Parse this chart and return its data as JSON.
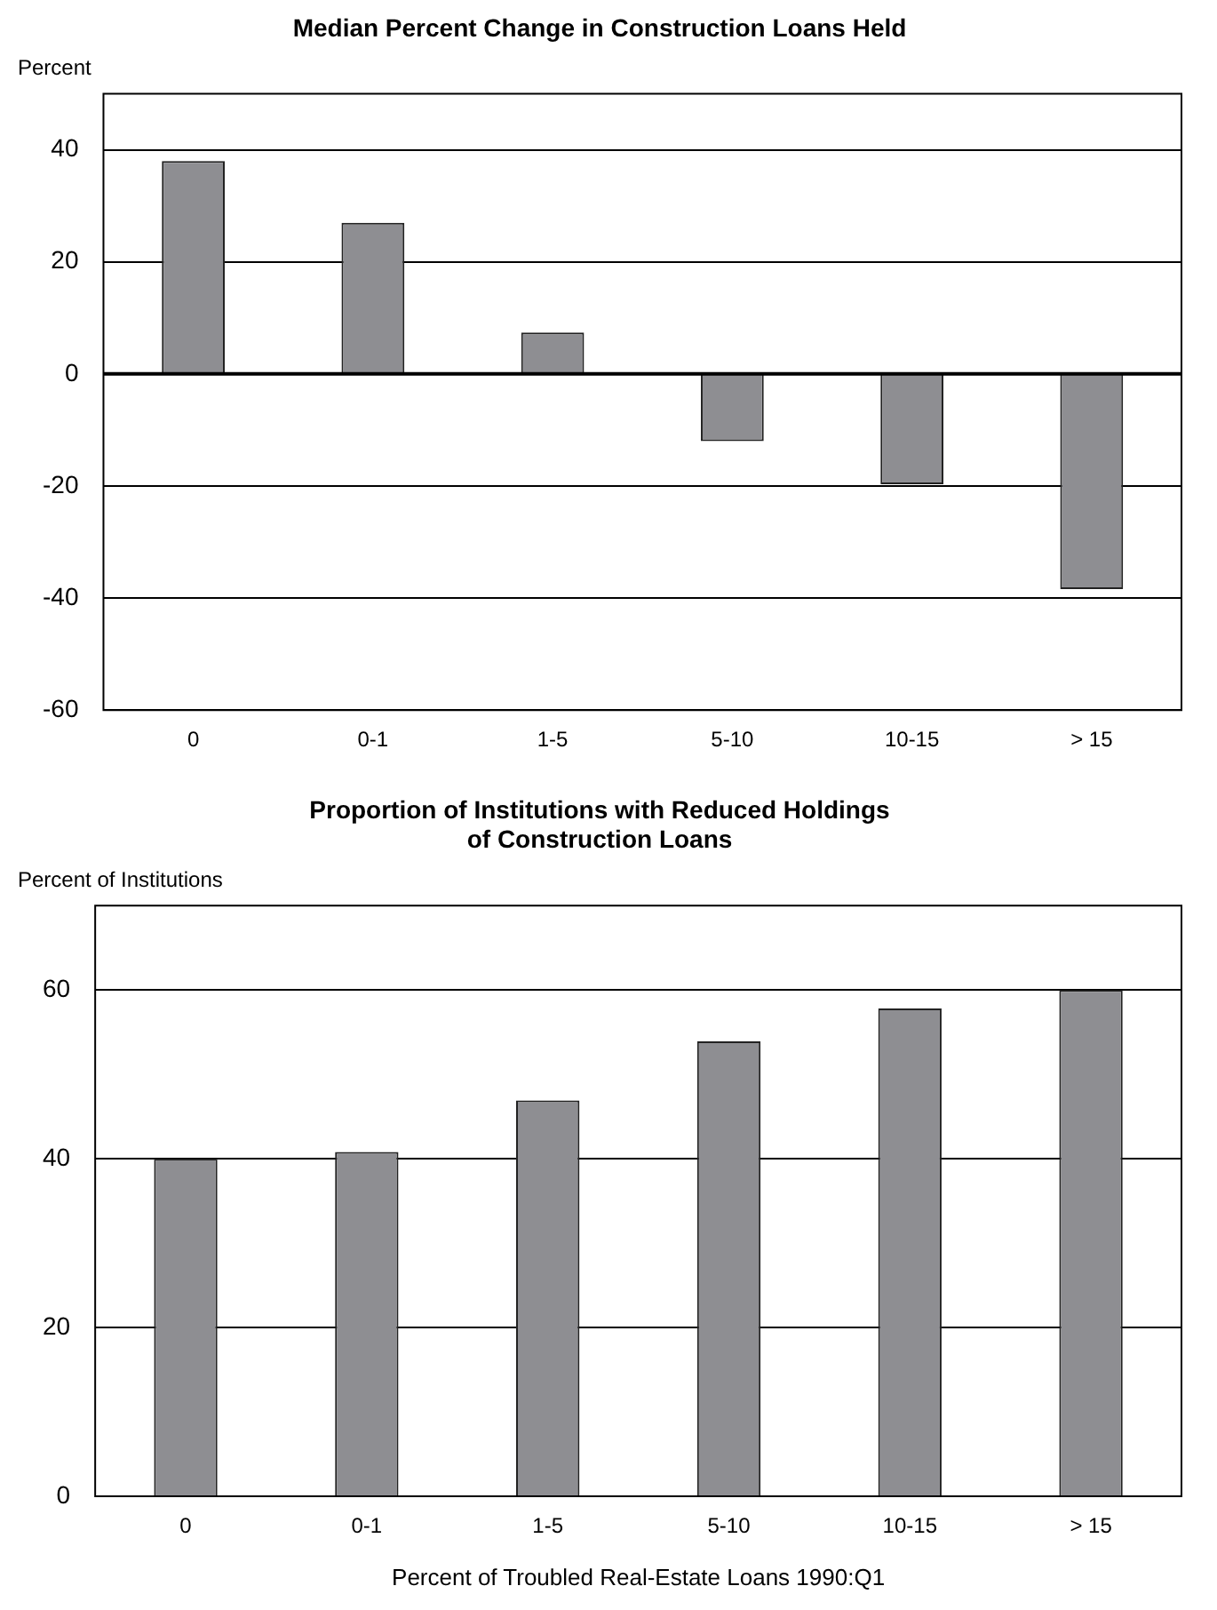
{
  "chart_data": [
    {
      "type": "bar",
      "title": "Median Percent Change in Construction Loans Held",
      "ylabel": "Percent",
      "categories": [
        "0",
        "0-1",
        "1-5",
        "5-10",
        "10-15",
        "> 15"
      ],
      "values": [
        38,
        27,
        7.4,
        -12,
        -19.7,
        -38.4
      ],
      "color": "#8e8e92",
      "ylim": [
        -60,
        50
      ],
      "yticks": [
        -60,
        -40,
        -20,
        0,
        20,
        40
      ],
      "grid": "y",
      "legend": false
    },
    {
      "type": "bar",
      "title": "Proportion of Institutions with Reduced Holdings of Construction Loans",
      "ylabel": "Percent of Institutions",
      "xlabel": "Percent of Troubled Real-Estate Loans 1990:Q1",
      "categories": [
        "0",
        "0-1",
        "1-5",
        "5-10",
        "10-15",
        "> 15"
      ],
      "values": [
        40,
        40.8,
        46.9,
        53.9,
        57.8,
        60
      ],
      "color": "#8e8e92",
      "ylim": [
        0,
        70
      ],
      "yticks": [
        0,
        20,
        40,
        60
      ],
      "grid": "y",
      "legend": false
    }
  ]
}
